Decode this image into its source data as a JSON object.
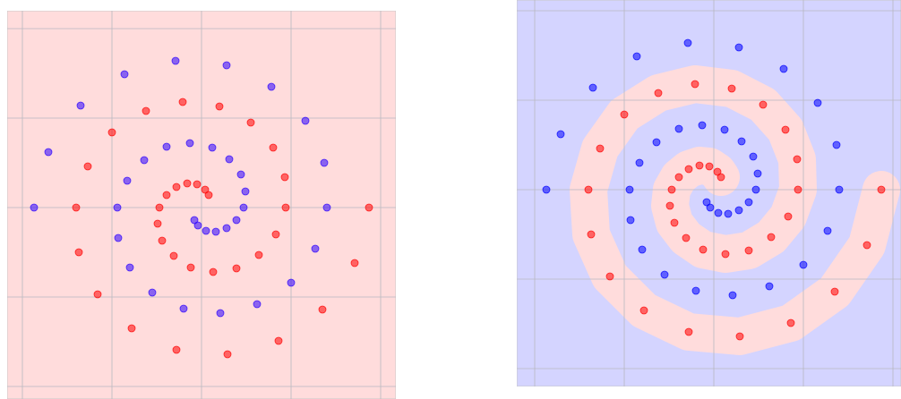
{
  "chart_data": [
    {
      "type": "scatter",
      "grid": true,
      "background": "#ffdcdc",
      "xlim": [
        -2.17,
        2.17
      ],
      "ylim": [
        -2.14,
        2.2
      ],
      "xticks": [
        -2,
        -1,
        0,
        1,
        2
      ],
      "yticks": [
        -2,
        -1,
        0,
        1,
        2
      ],
      "series": [
        {
          "color": "#ff0000",
          "x": [
            0.08,
            0.04,
            -0.05,
            -0.16,
            -0.28,
            -0.39,
            -0.47,
            -0.49,
            -0.44,
            -0.31,
            -0.12,
            0.13,
            0.39,
            0.64,
            0.83,
            0.94,
            0.93,
            0.8,
            0.55,
            0.2,
            -0.21,
            -0.62,
            -1.0,
            -1.27,
            -1.4,
            -1.37,
            -1.16,
            -0.78,
            -0.28,
            0.29,
            0.86,
            1.35,
            1.71,
            1.87
          ],
          "y": [
            0.14,
            0.2,
            0.26,
            0.27,
            0.23,
            0.14,
            0.0,
            -0.18,
            -0.37,
            -0.54,
            -0.67,
            -0.72,
            -0.68,
            -0.53,
            -0.3,
            0.0,
            0.34,
            0.67,
            0.95,
            1.13,
            1.18,
            1.08,
            0.84,
            0.46,
            0.0,
            -0.5,
            -0.97,
            -1.35,
            -1.59,
            -1.64,
            -1.49,
            -1.14,
            -0.62,
            0.0
          ]
        },
        {
          "color": "#2a00ff",
          "x": [
            -0.08,
            -0.04,
            0.05,
            0.16,
            0.28,
            0.39,
            0.47,
            0.49,
            0.44,
            0.31,
            0.12,
            -0.13,
            -0.39,
            -0.64,
            -0.83,
            -0.94,
            -0.93,
            -0.8,
            -0.55,
            -0.2,
            0.21,
            0.62,
            1.0,
            1.27,
            1.4,
            1.37,
            1.16,
            0.78,
            0.28,
            -0.29,
            -0.86,
            -1.35,
            -1.71,
            -1.87
          ],
          "y": [
            -0.14,
            -0.2,
            -0.26,
            -0.27,
            -0.23,
            -0.14,
            0.0,
            0.18,
            0.37,
            0.54,
            0.67,
            0.72,
            0.68,
            0.53,
            0.3,
            0.0,
            -0.34,
            -0.67,
            -0.95,
            -1.13,
            -1.18,
            -1.08,
            -0.84,
            -0.46,
            0.0,
            0.5,
            0.97,
            1.35,
            1.59,
            1.64,
            1.49,
            1.14,
            0.62,
            0.0
          ]
        }
      ]
    },
    {
      "type": "scatter",
      "grid": true,
      "background": "#d4d4ff",
      "region_color": "#ffdcdc",
      "xlim": [
        -2.2,
        2.09
      ],
      "ylim": [
        -2.2,
        2.12
      ],
      "xticks": [
        -2,
        -1,
        0,
        1,
        2
      ],
      "yticks": [
        -2,
        -1,
        0,
        1,
        2
      ],
      "series": [
        {
          "color": "#ff0000",
          "x": [
            0.08,
            0.04,
            -0.05,
            -0.16,
            -0.28,
            -0.39,
            -0.47,
            -0.49,
            -0.44,
            -0.31,
            -0.12,
            0.13,
            0.39,
            0.64,
            0.83,
            0.94,
            0.93,
            0.8,
            0.55,
            0.2,
            -0.21,
            -0.62,
            -1.0,
            -1.27,
            -1.4,
            -1.37,
            -1.16,
            -0.78,
            -0.28,
            0.29,
            0.86,
            1.35,
            1.71,
            1.87
          ],
          "y": [
            0.14,
            0.2,
            0.26,
            0.27,
            0.23,
            0.14,
            0.0,
            -0.18,
            -0.37,
            -0.54,
            -0.67,
            -0.72,
            -0.68,
            -0.53,
            -0.3,
            0.0,
            0.34,
            0.67,
            0.95,
            1.13,
            1.18,
            1.08,
            0.84,
            0.46,
            0.0,
            -0.5,
            -0.97,
            -1.35,
            -1.59,
            -1.64,
            -1.49,
            -1.14,
            -0.62,
            0.0
          ]
        },
        {
          "color": "#0000ff",
          "x": [
            -0.08,
            -0.04,
            0.05,
            0.16,
            0.28,
            0.39,
            0.47,
            0.49,
            0.44,
            0.31,
            0.12,
            -0.13,
            -0.39,
            -0.64,
            -0.83,
            -0.94,
            -0.93,
            -0.8,
            -0.55,
            -0.2,
            0.21,
            0.62,
            1.0,
            1.27,
            1.4,
            1.37,
            1.16,
            0.78,
            0.28,
            -0.29,
            -0.86,
            -1.35,
            -1.71,
            -1.87
          ],
          "y": [
            -0.14,
            -0.2,
            -0.26,
            -0.27,
            -0.23,
            -0.14,
            0.0,
            0.18,
            0.37,
            0.54,
            0.67,
            0.72,
            0.68,
            0.53,
            0.3,
            0.0,
            -0.34,
            -0.67,
            -0.95,
            -1.13,
            -1.18,
            -1.08,
            -0.84,
            -0.46,
            0.0,
            0.5,
            0.97,
            1.35,
            1.59,
            1.64,
            1.49,
            1.14,
            0.62,
            0.0
          ]
        }
      ]
    }
  ]
}
